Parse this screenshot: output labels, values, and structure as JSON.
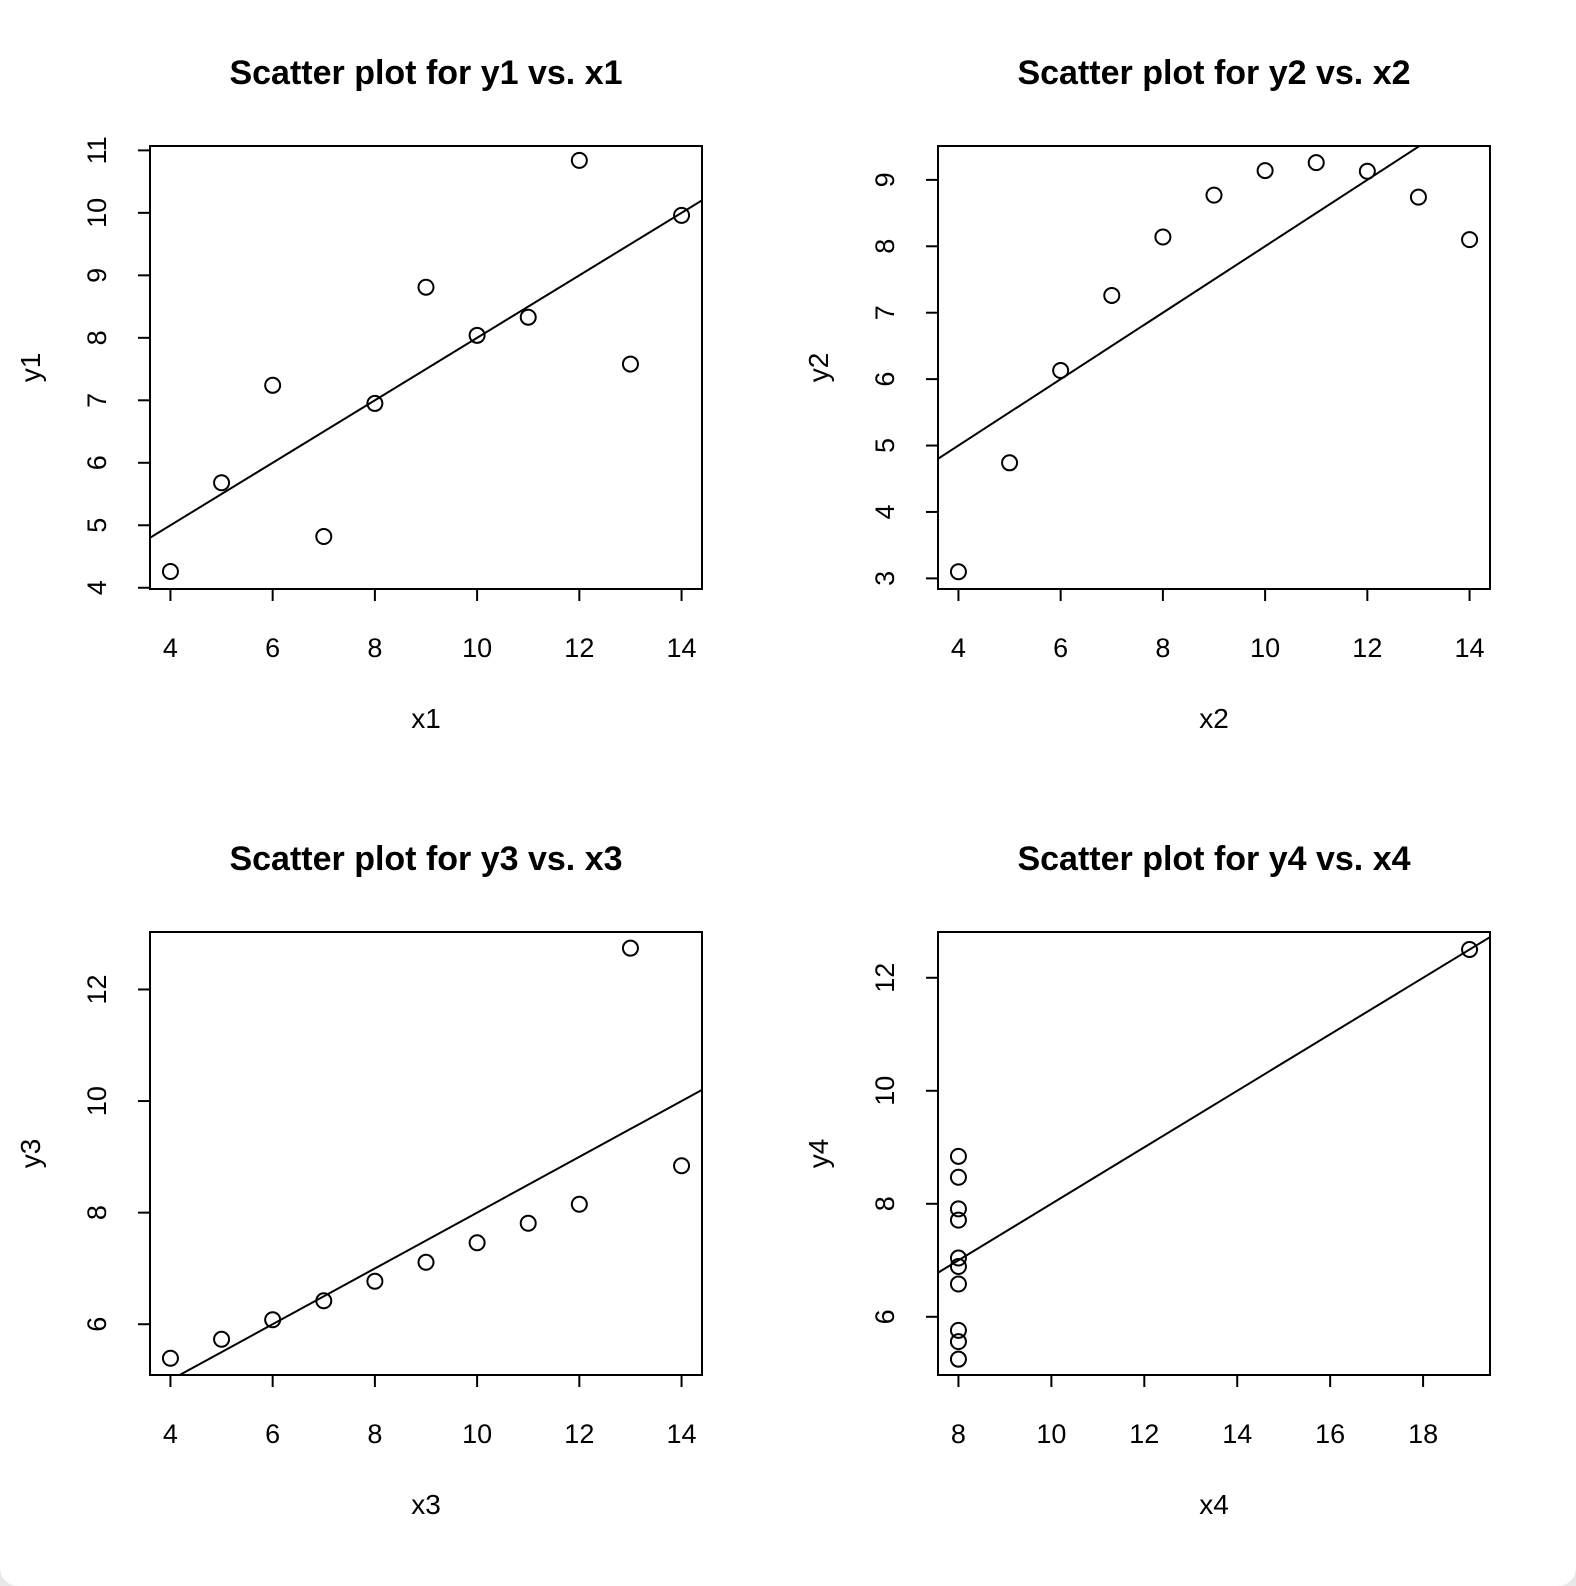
{
  "chart_data": [
    {
      "type": "scatter",
      "title": "Scatter plot for y1 vs. x1",
      "xlabel": "x1",
      "ylabel": "y1",
      "xlim": [
        3.6,
        14.4
      ],
      "ylim": [
        3.98,
        11.07
      ],
      "xticks": [
        4,
        6,
        8,
        10,
        12,
        14
      ],
      "yticks": [
        4,
        5,
        6,
        7,
        8,
        9,
        10,
        11
      ],
      "x": [
        10,
        8,
        13,
        9,
        11,
        14,
        6,
        4,
        12,
        7,
        5
      ],
      "y": [
        8.04,
        6.95,
        7.58,
        8.81,
        8.33,
        9.96,
        7.24,
        4.26,
        10.84,
        4.82,
        5.68
      ],
      "fit_line": {
        "intercept": 3.0,
        "slope": 0.5
      }
    },
    {
      "type": "scatter",
      "title": "Scatter plot for y2 vs. x2",
      "xlabel": "x2",
      "ylabel": "y2",
      "xlim": [
        3.6,
        14.4
      ],
      "ylim": [
        2.84,
        9.51
      ],
      "xticks": [
        4,
        6,
        8,
        10,
        12,
        14
      ],
      "yticks": [
        3,
        4,
        5,
        6,
        7,
        8,
        9
      ],
      "x": [
        10,
        8,
        13,
        9,
        11,
        14,
        6,
        4,
        12,
        7,
        5
      ],
      "y": [
        9.14,
        8.14,
        8.74,
        8.77,
        9.26,
        8.1,
        6.13,
        3.1,
        9.13,
        7.26,
        4.74
      ],
      "fit_line": {
        "intercept": 3.0,
        "slope": 0.5
      }
    },
    {
      "type": "scatter",
      "title": "Scatter plot for y3 vs. x3",
      "xlabel": "x3",
      "ylabel": "y3",
      "xlim": [
        3.6,
        14.4
      ],
      "ylim": [
        5.09,
        13.03
      ],
      "xticks": [
        4,
        6,
        8,
        10,
        12,
        14
      ],
      "yticks": [
        6,
        8,
        10,
        12
      ],
      "x": [
        10,
        8,
        13,
        9,
        11,
        14,
        6,
        4,
        12,
        7,
        5
      ],
      "y": [
        7.46,
        6.77,
        12.74,
        7.11,
        7.81,
        8.84,
        6.08,
        5.39,
        8.15,
        6.42,
        5.73
      ],
      "fit_line": {
        "intercept": 3.0,
        "slope": 0.5
      }
    },
    {
      "type": "scatter",
      "title": "Scatter plot for y4 vs. x4",
      "xlabel": "x4",
      "ylabel": "y4",
      "xlim": [
        7.56,
        19.44
      ],
      "ylim": [
        4.97,
        12.81
      ],
      "xticks": [
        8,
        10,
        12,
        14,
        16,
        18
      ],
      "yticks": [
        6,
        8,
        10,
        12
      ],
      "x": [
        8,
        8,
        8,
        8,
        8,
        8,
        8,
        19,
        8,
        8,
        8
      ],
      "y": [
        6.58,
        5.76,
        7.71,
        8.84,
        8.47,
        7.04,
        5.25,
        12.5,
        5.56,
        7.91,
        6.89
      ],
      "fit_line": {
        "intercept": 3.0,
        "slope": 0.5
      }
    }
  ]
}
